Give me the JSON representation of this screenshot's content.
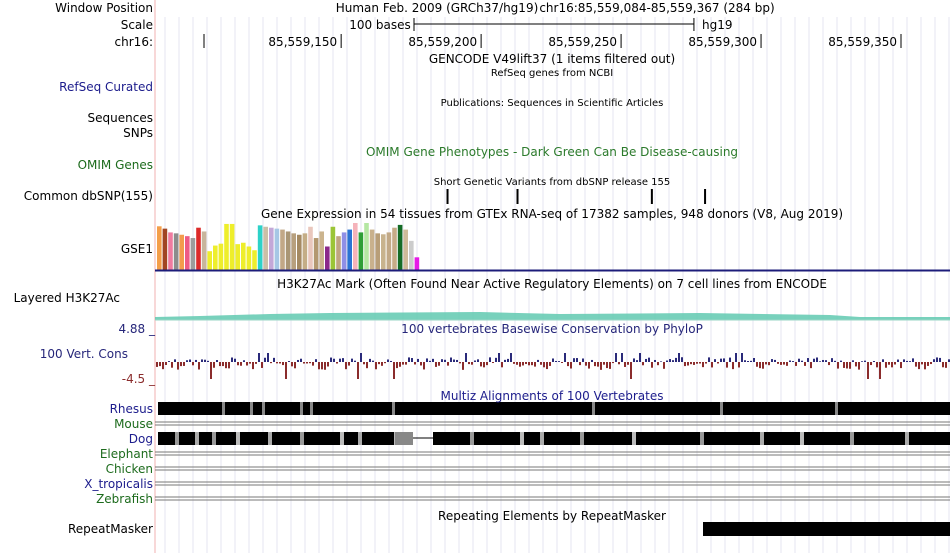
{
  "colors": {
    "refseq_label": "#1c1c8c",
    "omim_label": "#1d6b1d",
    "omim_title": "#2b7a2b",
    "phylop_title": "#26267a",
    "phylop_pos": "#2a2a7a",
    "phylop_neg": "#8b2c2c",
    "multiz_blue": "#1c1c8c",
    "multiz_green": "#1d6b1d",
    "h3k27ac_fill": "#60c9b0",
    "gse1_baseline": "#1c1c7a",
    "vline": "#f0b0b0"
  },
  "labels": {
    "window_position": "Window Position",
    "scale": "Scale",
    "chrom": "chr16:",
    "refseq_curated": "RefSeq Curated",
    "sequences": "Sequences",
    "snps": "SNPs",
    "omim_genes": "OMIM Genes",
    "common_dbsnp": "Common dbSNP(155)",
    "gse1": "GSE1",
    "layered_h3k27ac": "Layered H3K27Ac",
    "phylop_max": "4.88 _",
    "vert_cons": "100 Vert. Cons",
    "phylop_min": "-4.5 _",
    "rhesus": "Rhesus",
    "mouse": "Mouse",
    "dog": "Dog",
    "elephant": "Elephant",
    "chicken": "Chicken",
    "x_tropicalis": "X_tropicalis",
    "zebrafish": "Zebrafish",
    "repeatmasker": "RepeatMasker"
  },
  "titles": {
    "assembly": "Human Feb. 2009 (GRCh37/hg19)",
    "position": "chr16:85,559,084-85,559,367 (284 bp)",
    "scale_bases": "100 bases",
    "scale_db": "hg19",
    "gencode": "GENCODE V49lift37 (1 items filtered out)",
    "refseq": "RefSeq genes from NCBI",
    "publications": "Publications: Sequences in Scientific Articles",
    "omim": "OMIM Gene Phenotypes - Dark Green Can Be Disease-causing",
    "dbsnp": "Short Genetic Variants from dbSNP release 155",
    "gtex": "Gene Expression in 54 tissues from GTEx RNA-seq of 17382 samples, 948 donors (V8, Aug 2019)",
    "h3k27ac": "H3K27Ac Mark (Often Found Near Active Regulatory Elements) on 7 cell lines from ENCODE",
    "phylop": "100 vertebrates Basewise Conservation by PhyloP",
    "multiz": "Multiz Alignments of 100 Vertebrates",
    "repeatmasker": "Repeating Elements by RepeatMasker"
  },
  "ruler": {
    "ticks": [
      "85,559,150",
      "85,559,200",
      "85,559,250",
      "85,559,300",
      "85,559,350"
    ],
    "tick_positions_bp": [
      85559150,
      85559200,
      85559250,
      85559300,
      85559350
    ],
    "window_start": 85559084,
    "window_end": 85559367,
    "scale_bar_bp": 100
  },
  "dbsnp_sites_bp": [
    85559188,
    85559213,
    85559261,
    85559280
  ],
  "gse1_bars": [
    {
      "color": "#f49e49",
      "value": 0.93
    },
    {
      "color": "#a14522",
      "value": 0.88
    },
    {
      "color": "#ef7ba0",
      "value": 0.8
    },
    {
      "color": "#8c8c8c",
      "value": 0.78
    },
    {
      "color": "#f39c4d",
      "value": 0.75
    },
    {
      "color": "#ee5b85",
      "value": 0.72
    },
    {
      "color": "#9c9c9c",
      "value": 0.68
    },
    {
      "color": "#dc2a2a",
      "value": 0.9
    },
    {
      "color": "#c8b59c",
      "value": 0.82
    },
    {
      "color": "#eeee2b",
      "value": 0.4
    },
    {
      "color": "#eeee2b",
      "value": 0.52
    },
    {
      "color": "#eeee2b",
      "value": 0.56
    },
    {
      "color": "#eeee2b",
      "value": 0.98
    },
    {
      "color": "#eeee2b",
      "value": 0.98
    },
    {
      "color": "#eeee2b",
      "value": 0.55
    },
    {
      "color": "#eeee2b",
      "value": 0.58
    },
    {
      "color": "#eeee2b",
      "value": 0.5
    },
    {
      "color": "#eeee2b",
      "value": 0.42
    },
    {
      "color": "#2dd2c8",
      "value": 0.95
    },
    {
      "color": "#cbbfa7",
      "value": 0.92
    },
    {
      "color": "#c3a8d8",
      "value": 0.9
    },
    {
      "color": "#a6c7e5",
      "value": 0.88
    },
    {
      "color": "#c2a887",
      "value": 0.86
    },
    {
      "color": "#aa9675",
      "value": 0.82
    },
    {
      "color": "#b8a07e",
      "value": 0.78
    },
    {
      "color": "#a58a63",
      "value": 0.75
    },
    {
      "color": "#c4ad86",
      "value": 0.78
    },
    {
      "color": "#e9c7bd",
      "value": 0.92
    },
    {
      "color": "#b39870",
      "value": 0.68
    },
    {
      "color": "#cbb48e",
      "value": 0.82
    },
    {
      "color": "#8b2a8b",
      "value": 0.5
    },
    {
      "color": "#9bc537",
      "value": 0.92
    },
    {
      "color": "#c0a581",
      "value": 0.72
    },
    {
      "color": "#8f8fe6",
      "value": 0.8
    },
    {
      "color": "#2a73d3",
      "value": 0.86
    },
    {
      "color": "#f5b3ba",
      "value": 1.0
    },
    {
      "color": "#2e9e36",
      "value": 0.8
    },
    {
      "color": "#b5e7a3",
      "value": 1.0
    },
    {
      "color": "#c9b18d",
      "value": 0.86
    },
    {
      "color": "#b89e78",
      "value": 0.78
    },
    {
      "color": "#c8b38e",
      "value": 0.76
    },
    {
      "color": "#c2a987",
      "value": 0.8
    },
    {
      "color": "#c6ac88",
      "value": 0.9
    },
    {
      "color": "#156c26",
      "value": 0.96
    },
    {
      "color": "#cfbb9a",
      "value": 0.86
    },
    {
      "color": "#cccccc",
      "value": 0.62
    },
    {
      "color": "#e61ae6",
      "value": 0.27
    }
  ],
  "multiz_rows": [
    "rhesus",
    "mouse",
    "dog",
    "elephant",
    "chicken",
    "x_tropicalis",
    "zebrafish"
  ]
}
